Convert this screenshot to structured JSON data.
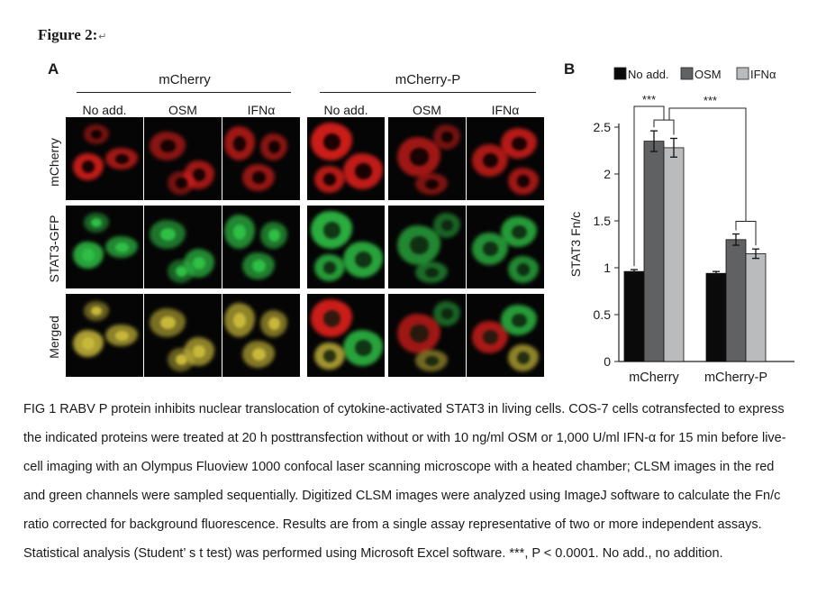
{
  "heading": {
    "text": "Figure 2:",
    "mark": "↵"
  },
  "panel_a": {
    "label": "A",
    "groups": [
      "mCherry",
      "mCherry-P"
    ],
    "columns": [
      "No add.",
      "OSM",
      "IFNα",
      "No add.",
      "OSM",
      "IFNα"
    ],
    "rows": [
      "mCherry",
      "STAT3-GFP",
      "Merged"
    ],
    "colors": {
      "red": "#e0201c",
      "green": "#2fbf45",
      "merged": "#c8b83a",
      "background": "#050505"
    }
  },
  "panel_b": {
    "label": "B",
    "legend": [
      "No add.",
      "OSM",
      "IFNα"
    ],
    "ylabel": "STAT3 Fn/c",
    "significance": [
      "***",
      "***"
    ]
  },
  "chart_data": {
    "type": "bar",
    "categories": [
      "mCherry",
      "mCherry-P"
    ],
    "series": [
      {
        "name": "No add.",
        "values": [
          0.96,
          0.94
        ],
        "errors": [
          0.02,
          0.02
        ],
        "color": "#0a0a0a"
      },
      {
        "name": "OSM",
        "values": [
          2.35,
          1.3
        ],
        "errors": [
          0.11,
          0.06
        ],
        "color": "#5f6163"
      },
      {
        "name": "IFNα",
        "values": [
          2.28,
          1.15
        ],
        "errors": [
          0.1,
          0.05
        ],
        "color": "#b9bbbd"
      }
    ],
    "ylim": [
      0,
      2.5
    ],
    "yticks": [
      "0",
      "0.5",
      "1",
      "1.5",
      "2",
      "2.5"
    ],
    "ytick_values": [
      0,
      0.5,
      1,
      1.5,
      2,
      2.5
    ],
    "ylabel": "STAT3 Fn/c",
    "xlabel": "",
    "grid": false,
    "legend_position": "top"
  },
  "caption": {
    "text": "FIG 1 RABV P protein inhibits nuclear translocation of cytokine-activated STAT3 in living cells. COS-7 cells cotransfected to express the indicated proteins were treated at 20 h posttransfection without or with 10 ng/ml OSM or 1,000 U/ml IFN-α for 15 min before live-cell imaging with an Olympus Fluoview 1000 confocal laser scanning microscope with a heated chamber; CLSM images in the red and green channels were sampled sequentially. Digitized CLSM images were analyzed using ImageJ software to calculate the Fn/c ratio corrected for background fluorescence. Results are from a single assay representative of two or more independent assays. Statistical analysis (Student’ s t test) was performed using Microsoft Excel software. ***, P < 0.0001. No add., no addition."
  }
}
